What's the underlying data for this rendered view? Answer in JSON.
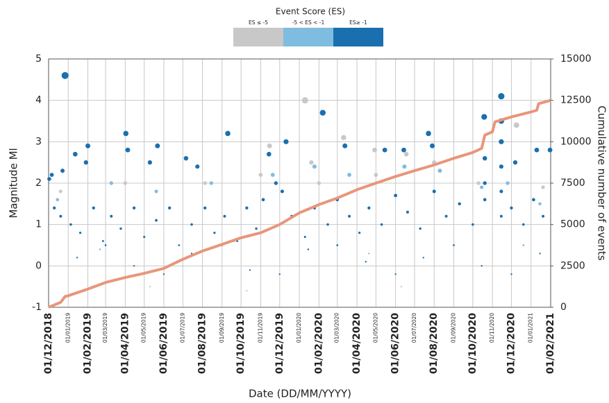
{
  "chart_data": {
    "type": "scatter",
    "legend_title": "Event Score (ES)",
    "xlabel": "Date (DD/MM/YYYY)",
    "ylabel": "Magnitude Ml",
    "y2label": "Cumulative number of events",
    "xlim": [
      "01/12/2018",
      "01/02/2021"
    ],
    "xticks": [
      "01/12/2018",
      "01/01/2019",
      "01/02/2019",
      "01/03/2019",
      "01/04/2019",
      "01/05/2019",
      "01/06/2019",
      "01/07/2019",
      "01/08/2019",
      "01/09/2019",
      "01/10/2019",
      "01/11/2019",
      "01/12/2019",
      "01/01/2020",
      "01/02/2020",
      "01/03/2020",
      "01/04/2020",
      "01/05/2020",
      "01/06/2020",
      "01/07/2020",
      "01/08/2020",
      "01/09/2020",
      "01/10/2020",
      "01/11/2020",
      "01/12/2020",
      "01/01/2021",
      "01/02/2021"
    ],
    "ylim": [
      -1,
      5
    ],
    "yticks": [
      -1,
      0,
      1,
      2,
      3,
      4,
      5
    ],
    "y2lim": [
      0,
      15000
    ],
    "y2ticks": [
      0,
      2500,
      5000,
      7500,
      10000,
      12500,
      15000
    ],
    "grid": true,
    "series": [
      {
        "name": "ES ≤ -5",
        "color": "#c8c8c8",
        "x": [
          "10/01/2020",
          "11/03/2020",
          "15/11/2019",
          "29/04/2020",
          "18/06/2020",
          "09/12/2020",
          "20/01/2020",
          "20/12/2018",
          "01/04/2019",
          "05/08/2019",
          "01/11/2019",
          "01/02/2020",
          "01/05/2020",
          "01/08/2020",
          "10/10/2020",
          "20/01/2021",
          "10/05/2019",
          "10/10/2019",
          "10/06/2020"
        ],
        "values": [
          4.0,
          3.1,
          2.9,
          2.8,
          2.7,
          3.4,
          2.5,
          1.8,
          2.0,
          2.0,
          2.2,
          2.0,
          2.2,
          2.5,
          2.0,
          1.9,
          -0.5,
          -0.6,
          -0.5
        ]
      },
      {
        "name": "-5 < ES < -1",
        "color": "#7fbde0",
        "x": [
          "15/12/2018",
          "10/03/2019",
          "20/05/2019",
          "15/08/2019",
          "20/11/2019",
          "25/01/2020",
          "20/03/2020",
          "15/06/2020",
          "10/08/2020",
          "15/10/2020",
          "25/11/2020",
          "15/01/2021",
          "20/02/2019",
          "20/09/2019",
          "20/04/2020",
          "20/12/2020"
        ],
        "values": [
          1.6,
          2.0,
          1.8,
          2.0,
          2.2,
          2.4,
          2.2,
          2.4,
          2.3,
          1.9,
          2.0,
          1.5,
          0.4,
          0.6,
          0.3,
          0.5
        ]
      },
      {
        "name": "ES≥ -1",
        "color": "#1a6faf",
        "x": [
          "27/12/2018",
          "02/12/2018",
          "06/12/2018",
          "23/12/2018",
          "12/01/2019",
          "01/02/2019",
          "29/01/2019",
          "02/04/2019",
          "05/04/2019",
          "10/05/2019",
          "22/05/2019",
          "06/07/2019",
          "24/07/2019",
          "10/09/2019",
          "14/11/2019",
          "11/12/2019",
          "07/02/2020",
          "13/03/2020",
          "15/05/2020",
          "14/06/2020",
          "23/07/2020",
          "29/07/2020",
          "19/10/2020",
          "15/11/2020",
          "15/11/2020",
          "07/12/2020",
          "10/01/2021",
          "31/01/2021",
          "10/12/2018",
          "20/12/2018",
          "05/01/2019",
          "20/01/2019",
          "10/02/2019",
          "25/02/2019",
          "10/03/2019",
          "25/03/2019",
          "15/04/2019",
          "01/05/2019",
          "20/05/2019",
          "10/06/2019",
          "25/06/2019",
          "15/07/2019",
          "05/08/2019",
          "20/08/2019",
          "05/09/2019",
          "25/09/2019",
          "10/10/2019",
          "25/10/2019",
          "05/11/2019",
          "25/11/2019",
          "05/12/2019",
          "20/12/2019",
          "10/01/2020",
          "25/01/2020",
          "15/02/2020",
          "01/03/2020",
          "20/03/2020",
          "05/04/2020",
          "20/04/2020",
          "10/05/2020",
          "01/06/2020",
          "20/06/2020",
          "10/07/2020",
          "01/08/2020",
          "20/08/2020",
          "10/09/2020",
          "01/10/2020",
          "20/10/2020",
          "20/10/2020",
          "20/10/2020",
          "15/11/2020",
          "15/11/2020",
          "15/11/2020",
          "15/11/2020",
          "01/12/2020",
          "20/12/2020",
          "05/01/2021",
          "20/01/2021",
          "15/01/2019",
          "15/04/2019",
          "15/07/2019",
          "15/10/2019",
          "15/01/2020",
          "15/04/2020",
          "15/07/2020",
          "15/10/2020",
          "15/01/2021",
          "01/03/2019",
          "01/06/2019",
          "01/09/2019",
          "01/12/2019",
          "01/03/2020",
          "01/06/2020",
          "01/09/2020",
          "01/12/2020"
        ],
        "values": [
          4.6,
          2.1,
          2.2,
          2.3,
          2.7,
          2.9,
          2.5,
          3.2,
          2.8,
          2.5,
          2.9,
          2.6,
          2.4,
          3.2,
          2.7,
          3.0,
          3.7,
          2.9,
          2.8,
          2.8,
          3.2,
          2.9,
          3.6,
          4.1,
          3.5,
          2.5,
          2.8,
          2.8,
          1.4,
          1.2,
          1.0,
          0.8,
          1.4,
          0.6,
          1.2,
          0.9,
          1.4,
          0.7,
          1.1,
          1.4,
          0.5,
          1.0,
          1.4,
          0.8,
          1.2,
          0.6,
          1.4,
          0.9,
          1.6,
          2.0,
          1.8,
          1.2,
          0.7,
          1.4,
          1.0,
          1.6,
          1.2,
          0.8,
          1.4,
          1.0,
          1.7,
          1.3,
          0.9,
          1.8,
          1.2,
          1.5,
          1.0,
          2.6,
          2.0,
          1.6,
          3.0,
          2.4,
          1.8,
          1.2,
          1.4,
          1.0,
          1.6,
          1.2,
          0.2,
          0.0,
          0.3,
          -0.1,
          0.4,
          0.1,
          0.2,
          0.0,
          0.3,
          0.5,
          -0.2,
          0.5,
          -0.2,
          0.5,
          -0.2,
          0.5,
          -0.2
        ]
      }
    ],
    "cumulative": {
      "axis": "y2",
      "color": "#e8967a",
      "x": [
        "01/12/2018",
        "20/12/2018",
        "27/12/2018",
        "01/01/2019",
        "01/02/2019",
        "01/03/2019",
        "01/04/2019",
        "01/05/2019",
        "01/06/2019",
        "01/07/2019",
        "01/08/2019",
        "01/09/2019",
        "01/10/2019",
        "01/11/2019",
        "01/12/2019",
        "01/01/2020",
        "01/02/2020",
        "01/03/2020",
        "01/04/2020",
        "01/05/2020",
        "01/06/2020",
        "01/07/2020",
        "01/08/2020",
        "01/09/2020",
        "01/10/2020",
        "15/10/2020",
        "20/10/2020",
        "01/11/2020",
        "05/11/2020",
        "01/12/2020",
        "01/01/2021",
        "10/01/2021",
        "13/01/2021",
        "01/02/2021"
      ],
      "values": [
        0,
        300,
        650,
        700,
        1100,
        1500,
        1800,
        2050,
        2350,
        2900,
        3400,
        3800,
        4200,
        4500,
        5000,
        5700,
        6200,
        6600,
        7100,
        7500,
        7900,
        8250,
        8600,
        9000,
        9350,
        9600,
        10400,
        10600,
        11200,
        11500,
        11800,
        11900,
        12300,
        12500
      ]
    }
  }
}
